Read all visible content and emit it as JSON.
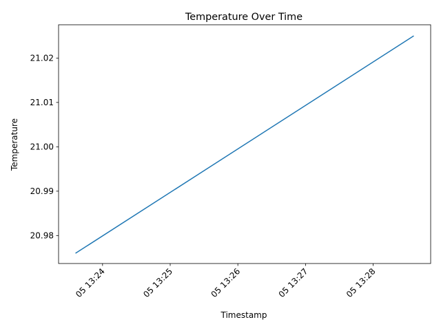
{
  "chart_data": {
    "type": "line",
    "title": "Temperature Over Time",
    "xlabel": "Timestamp",
    "ylabel": "Temperature",
    "x_ticks": [
      {
        "value": 23.9,
        "label": "05 13:24"
      },
      {
        "value": 24.9,
        "label": "05 13:25"
      },
      {
        "value": 25.9,
        "label": "05 13:26"
      },
      {
        "value": 26.9,
        "label": "05 13:27"
      },
      {
        "value": 27.9,
        "label": "05 13:28"
      }
    ],
    "y_ticks": [
      {
        "value": 20.98,
        "label": "20.98"
      },
      {
        "value": 20.99,
        "label": "20.99"
      },
      {
        "value": 21.0,
        "label": "21.00"
      },
      {
        "value": 21.01,
        "label": "21.01"
      },
      {
        "value": 21.02,
        "label": "21.02"
      }
    ],
    "xlim": [
      23.25,
      28.75
    ],
    "ylim": [
      20.9737,
      21.0275
    ],
    "x_unit_note": "minutes past 13:00 on day 05",
    "series": [
      {
        "color": "#1f77b4",
        "points": [
          {
            "x": 23.5,
            "y": 20.976
          },
          {
            "x": 28.5,
            "y": 21.025
          }
        ]
      }
    ],
    "grid": false,
    "legend": "none"
  }
}
